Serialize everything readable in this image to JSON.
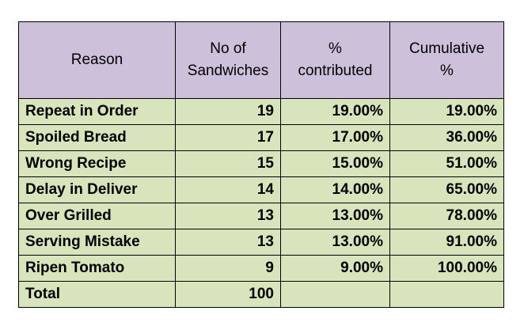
{
  "colors": {
    "header_bg": "#ccc0da",
    "body_bg": "#d7e4bc"
  },
  "headers": {
    "reason": "Reason",
    "count_line1": "No of",
    "count_line2": "Sandwiches",
    "pct_line1": "%",
    "pct_line2": "contributed",
    "cum_line1": "Cumulative",
    "cum_line2": "%"
  },
  "rows": [
    {
      "reason": "Repeat in Order",
      "count": "19",
      "pct": "19.00%",
      "cum": "19.00%"
    },
    {
      "reason": "Spoiled Bread",
      "count": "17",
      "pct": "17.00%",
      "cum": "36.00%"
    },
    {
      "reason": "Wrong Recipe",
      "count": "15",
      "pct": "15.00%",
      "cum": "51.00%"
    },
    {
      "reason": "Delay in Deliver",
      "count": "14",
      "pct": "14.00%",
      "cum": "65.00%"
    },
    {
      "reason": "Over Grilled",
      "count": "13",
      "pct": "13.00%",
      "cum": "78.00%"
    },
    {
      "reason": "Serving Mistake",
      "count": "13",
      "pct": "13.00%",
      "cum": "91.00%"
    },
    {
      "reason": "Ripen Tomato",
      "count": "9",
      "pct": "9.00%",
      "cum": "100.00%"
    }
  ],
  "total": {
    "label": "Total",
    "count": "100",
    "pct": "",
    "cum": ""
  }
}
